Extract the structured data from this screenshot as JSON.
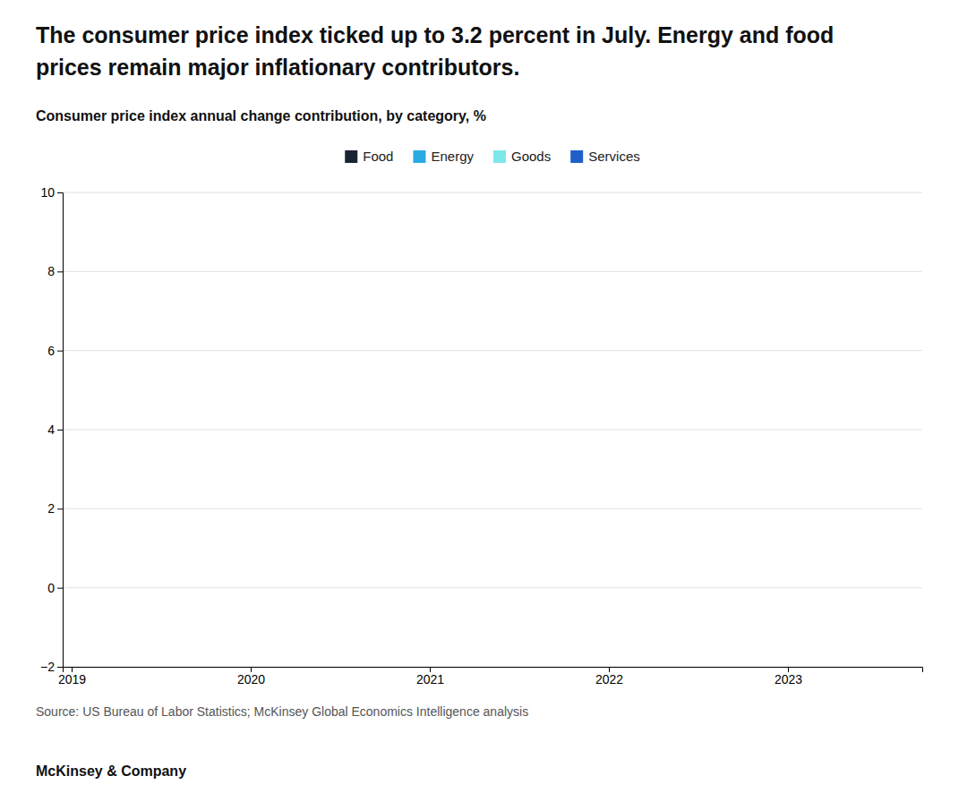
{
  "chart_data": {
    "type": "bar",
    "title": [
      "The consumer price index ticked up to 3.2 percent in July. Energy and food",
      "prices remain major inflationary contributors."
    ],
    "subtitle": "Consumer price index annual change contribution, by category, %",
    "annotations": [
      "Source: US Bureau of Labor Statistics; McKinsey Global Economics Intelligence analysis",
      "McKinsey & Company"
    ],
    "x": [],
    "series": [
      {
        "name": "Food",
        "color": "#1a2332",
        "values": []
      },
      {
        "name": "Energy",
        "color": "#29abe2",
        "values": []
      },
      {
        "name": "Goods",
        "color": "#7ee8e8",
        "values": []
      },
      {
        "name": "Services",
        "color": "#1f5fc9",
        "values": []
      }
    ],
    "xlim": [
      2018.95,
      2023.75
    ],
    "xticks": [
      2019,
      2020,
      2021,
      2022,
      2023
    ],
    "ylim": [
      -2,
      10
    ],
    "yticks": [
      {
        "value": -2,
        "label": "−2"
      },
      0,
      2,
      4,
      6,
      8,
      10
    ],
    "grid": true
  }
}
